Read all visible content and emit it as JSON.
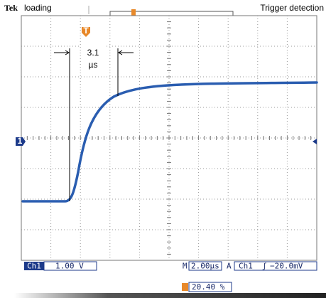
{
  "header": {
    "brand": "Tek",
    "status": "loading",
    "trigger_status": "Trigger detection"
  },
  "annotation": {
    "value": "3.1",
    "unit": "µs"
  },
  "markers": {
    "channel": "1",
    "trigger": "T"
  },
  "readout": {
    "channel": "Ch1",
    "volts_per_div": "1.00 V",
    "timebase_prefix": "M",
    "timebase": "2.00µs",
    "trigger_mode": "A",
    "trigger_source": "Ch1",
    "trigger_slope": "ʃ",
    "trigger_level": "−20.0mV",
    "trigger_position": "20.40 %"
  }
}
